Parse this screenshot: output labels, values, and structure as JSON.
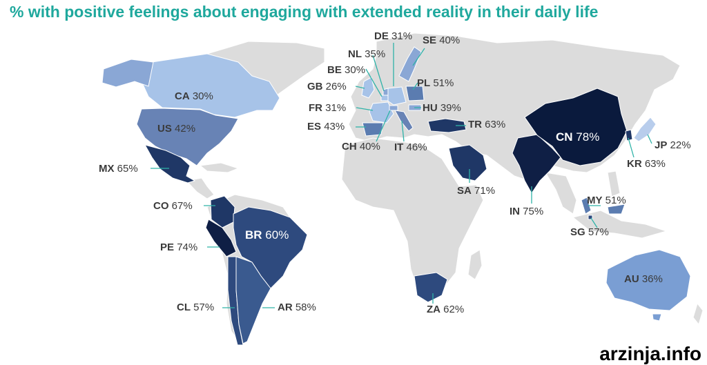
{
  "title": "% with positive feelings about engaging with extended reality in their daily life",
  "colors": {
    "land": "#dcdcdc",
    "light": "#9ab9e2",
    "mid": "#4e6f9e",
    "dark": "#273d68",
    "darkest": "#0e1f42",
    "title": "#1fa89d",
    "leader": "#2fb3a8"
  },
  "countries": [
    {
      "key": "ca",
      "code": "CA",
      "pct": "30%"
    },
    {
      "key": "us",
      "code": "US",
      "pct": "42%"
    },
    {
      "key": "mx",
      "code": "MX",
      "pct": "65%"
    },
    {
      "key": "co",
      "code": "CO",
      "pct": "67%"
    },
    {
      "key": "pe",
      "code": "PE",
      "pct": "74%"
    },
    {
      "key": "br",
      "code": "BR",
      "pct": "60%"
    },
    {
      "key": "cl",
      "code": "CL",
      "pct": "57%"
    },
    {
      "key": "ar",
      "code": "AR",
      "pct": "58%"
    },
    {
      "key": "de",
      "code": "DE",
      "pct": "31%"
    },
    {
      "key": "se",
      "code": "SE",
      "pct": "40%"
    },
    {
      "key": "nl",
      "code": "NL",
      "pct": "35%"
    },
    {
      "key": "be",
      "code": "BE",
      "pct": "30%"
    },
    {
      "key": "gb",
      "code": "GB",
      "pct": "26%"
    },
    {
      "key": "pl",
      "code": "PL",
      "pct": "51%"
    },
    {
      "key": "fr",
      "code": "FR",
      "pct": "31%"
    },
    {
      "key": "hu",
      "code": "HU",
      "pct": "39%"
    },
    {
      "key": "es",
      "code": "ES",
      "pct": "43%"
    },
    {
      "key": "tr",
      "code": "TR",
      "pct": "63%"
    },
    {
      "key": "ch",
      "code": "CH",
      "pct": "40%"
    },
    {
      "key": "it",
      "code": "IT",
      "pct": "46%"
    },
    {
      "key": "sa",
      "code": "SA",
      "pct": "71%"
    },
    {
      "key": "cn",
      "code": "CN",
      "pct": "78%"
    },
    {
      "key": "jp",
      "code": "JP",
      "pct": "22%"
    },
    {
      "key": "kr",
      "code": "KR",
      "pct": "63%"
    },
    {
      "key": "in",
      "code": "IN",
      "pct": "75%"
    },
    {
      "key": "my",
      "code": "MY",
      "pct": "51%"
    },
    {
      "key": "sg",
      "code": "SG",
      "pct": "57%"
    },
    {
      "key": "za",
      "code": "ZA",
      "pct": "62%"
    },
    {
      "key": "au",
      "code": "AU",
      "pct": "36%"
    }
  ],
  "watermark": "arzinja.info"
}
